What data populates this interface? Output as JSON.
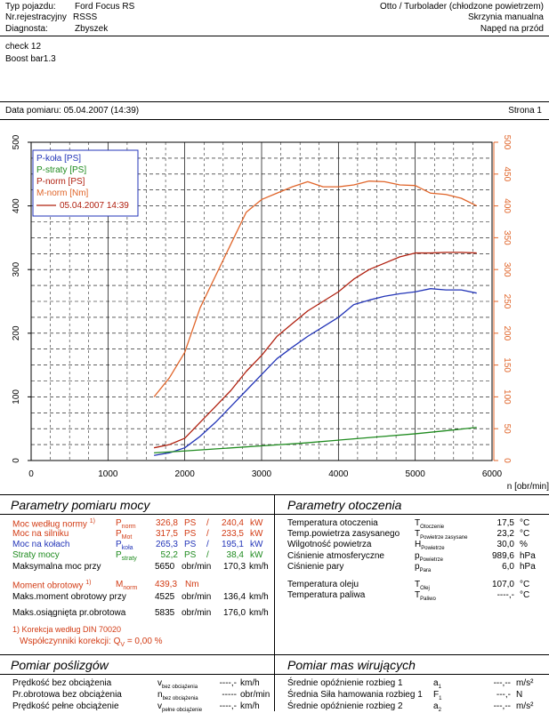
{
  "header": {
    "vehicle_label": "Typ pojazdu:",
    "vehicle_value": "Ford Focus RS",
    "reg_label": "Nr.rejestracyjny",
    "reg_value": "RSSS",
    "diag_label": "Diagnosta:",
    "diag_value": "Zbyszek",
    "engine_type": "Otto / Turbolader (chłodzone powietrzem)",
    "gearbox": "Skrzynia manualna",
    "drive": "Napęd na przód"
  },
  "notes": {
    "line1": "check 12",
    "line2": "Boost bar1.3"
  },
  "meta": {
    "date_label": "Data pomiaru: 05.04.2007 (14:39)",
    "page_label": "Strona 1"
  },
  "chart_data": {
    "type": "line",
    "x_label": "n [obr/min]",
    "x_ticks": [
      "0",
      "1000",
      "2000",
      "3000",
      "4000",
      "5000",
      "6000"
    ],
    "xlim": [
      0,
      6000
    ],
    "y_left_ticks": [
      "0",
      "100",
      "200",
      "300",
      "400",
      "500"
    ],
    "ylim_left": [
      0,
      500
    ],
    "y_right_ticks": [
      "0",
      "50",
      "100",
      "150",
      "200",
      "250",
      "300",
      "350",
      "400",
      "450",
      "500"
    ],
    "ylim_right": [
      0,
      500
    ],
    "grid": true,
    "legend_position": "top-left",
    "legend": [
      "P-koła [PS]",
      "P-straty [PS]",
      "P-norm [PS]",
      "M-norm [Nm]"
    ],
    "legend_run": "05.04.2007 14:39",
    "series": [
      {
        "name": "P-koła [PS]",
        "color": "#2335b8",
        "axis": "left",
        "x": [
          1600,
          1800,
          2000,
          2200,
          2400,
          2600,
          2800,
          3000,
          3200,
          3400,
          3600,
          3800,
          4000,
          4200,
          4400,
          4600,
          4800,
          5000,
          5200,
          5400,
          5600,
          5800
        ],
        "y": [
          8,
          12,
          20,
          38,
          60,
          85,
          110,
          135,
          160,
          178,
          195,
          210,
          225,
          245,
          252,
          258,
          262,
          265,
          270,
          268,
          268,
          263
        ]
      },
      {
        "name": "P-straty [PS]",
        "color": "#1f8b1f",
        "axis": "left",
        "x": [
          1600,
          2000,
          2500,
          3000,
          3500,
          4000,
          4500,
          5000,
          5500,
          5800
        ],
        "y": [
          12,
          15,
          19,
          23,
          27,
          32,
          37,
          42,
          48,
          52
        ]
      },
      {
        "name": "P-norm [PS]",
        "color": "#b0200f",
        "axis": "left",
        "x": [
          1600,
          1800,
          2000,
          2200,
          2400,
          2600,
          2800,
          3000,
          3200,
          3400,
          3600,
          3800,
          4000,
          4200,
          4400,
          4600,
          4800,
          5000,
          5200,
          5400,
          5600,
          5800
        ],
        "y": [
          20,
          25,
          35,
          60,
          85,
          110,
          140,
          165,
          195,
          215,
          235,
          250,
          265,
          285,
          300,
          310,
          320,
          326,
          326,
          327,
          327,
          326
        ]
      },
      {
        "name": "M-norm [Nm]",
        "color": "#e0652a",
        "axis": "right",
        "x": [
          1600,
          1800,
          2000,
          2200,
          2400,
          2600,
          2800,
          3000,
          3200,
          3400,
          3600,
          3800,
          4000,
          4200,
          4400,
          4600,
          4800,
          5000,
          5200,
          5400,
          5600,
          5800
        ],
        "y": [
          100,
          130,
          170,
          240,
          290,
          340,
          390,
          410,
          420,
          430,
          438,
          430,
          430,
          433,
          439,
          438,
          433,
          432,
          420,
          418,
          412,
          400
        ]
      }
    ]
  },
  "power": {
    "title": "Parametry pomiaru mocy",
    "rows": [
      {
        "label": "Moc według normy",
        "footnote": "1)",
        "sym": "P",
        "sub": "norm",
        "v1": "326,8",
        "u1": "PS",
        "sep": "/",
        "v2": "240,4",
        "u2": "kW"
      },
      {
        "label": "Moc na silniku",
        "footnote": "",
        "sym": "P",
        "sub": "Mot",
        "v1": "317,5",
        "u1": "PS",
        "sep": "/",
        "v2": "233,5",
        "u2": "kW"
      },
      {
        "label": "Moc na kołach",
        "footnote": "",
        "sym": "P",
        "sub": "koła",
        "v1": "265,3",
        "u1": "PS",
        "sep": "/",
        "v2": "195,1",
        "u2": "kW"
      },
      {
        "label": "Straty mocy",
        "footnote": "",
        "sym": "P",
        "sub": "straty",
        "v1": "52,2",
        "u1": "PS",
        "sep": "/",
        "v2": "38,4",
        "u2": "kW"
      }
    ],
    "max_power_label": "Maksymalna moc przy",
    "max_power_rpm": "5650",
    "rpm_unit": "obr/min",
    "max_power_speed": "170,3",
    "speed_unit": "km/h",
    "torque_label": "Moment obrotowy",
    "torque_footnote": "1)",
    "torque_sym": "M",
    "torque_sub": "norm",
    "torque_value": "439,3",
    "torque_unit": "Nm",
    "max_torque_label": "Maks.moment obrotowy przy",
    "max_torque_rpm": "4525",
    "max_torque_speed": "136,4",
    "max_rpm_label": "Maks.osiągnięta pr.obrotowa",
    "max_rpm": "5835",
    "max_rpm_speed": "176,0",
    "correction_line1": "1) Korekcja według DIN 70020",
    "correction_line2": "Współczynniki korekcji: Q",
    "correction_sub": "V",
    "correction_value": "=  0,00 %"
  },
  "ambient": {
    "title": "Parametry otoczenia",
    "rows": [
      {
        "label": "Temperatura otoczenia",
        "sym": "T",
        "sub": "Otoczenie",
        "value": "17,5",
        "unit": "°C"
      },
      {
        "label": "Temp.powietrza zasysanego",
        "sym": "T",
        "sub": "Powietrze zasysane",
        "value": "23,2",
        "unit": "°C"
      },
      {
        "label": "Wilgotność powietrza",
        "sym": "H",
        "sub": "Powietrze",
        "value": "30,0",
        "unit": "%"
      },
      {
        "label": "Ciśnienie atmosferyczne",
        "sym": "p",
        "sub": "Powietrze",
        "value": "989,6",
        "unit": "hPa"
      },
      {
        "label": "Ciśnienie pary",
        "sym": "p",
        "sub": "Para",
        "value": "6,0",
        "unit": "hPa"
      },
      {
        "label": "Temperatura oleju",
        "sym": "T",
        "sub": "Olej",
        "value": "107,0",
        "unit": "°C"
      },
      {
        "label": "Temperatura paliwa",
        "sym": "T",
        "sub": "Paliwo",
        "value": "----,-",
        "unit": "°C"
      }
    ]
  },
  "slip": {
    "title": "Pomiar poślizgów",
    "rows": [
      {
        "label": "Prędkość bez obciążenia",
        "sym": "v",
        "sub": "bez obciążenia",
        "value": "----,-",
        "unit": "km/h"
      },
      {
        "label": "Pr.obrotowa bez obciążenia",
        "sym": "n",
        "sub": "bez obciążenia",
        "value": "-----",
        "unit": "obr/min"
      },
      {
        "label": "Prędkość pełne obciążenie",
        "sym": "v",
        "sub": "pełne obciążenie",
        "value": "----,-",
        "unit": "km/h"
      }
    ]
  },
  "mass": {
    "title": "Pomiar mas wirujących",
    "rows": [
      {
        "label": "Średnie opóźnienie rozbieg 1",
        "sym": "a",
        "sub": "1",
        "value": "---,--",
        "unit": "m/s²"
      },
      {
        "label": "Średnia Siła hamowania rozbieg 1",
        "sym": "F",
        "sub": "1",
        "value": "---,-",
        "unit": "N"
      },
      {
        "label": "Średnie opóźnienie rozbieg 2",
        "sym": "a",
        "sub": "2",
        "value": "---,--",
        "unit": "m/s²"
      }
    ]
  }
}
